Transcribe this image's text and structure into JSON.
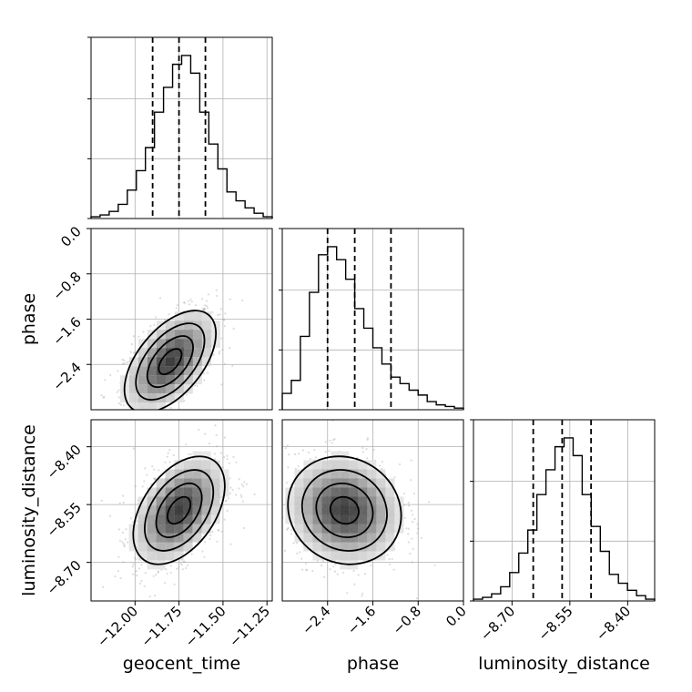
{
  "chart_data": {
    "type": "corner",
    "parameters": [
      "geocent_time",
      "phase",
      "luminosity_distance"
    ],
    "axis_labels": {
      "geocent_time": "geocent_time",
      "phase": "phase",
      "luminosity_distance": "luminosity_distance"
    },
    "ranges": {
      "geocent_time": [
        -12.25,
        -11.22
      ],
      "phase": [
        -3.2,
        0.0
      ],
      "luminosity_distance": [
        -8.8,
        -8.33
      ]
    },
    "ticks": {
      "geocent_time": [
        -12.0,
        -11.75,
        -11.5,
        -11.25
      ],
      "phase": [
        -2.4,
        -1.6,
        -0.8,
        0.0
      ],
      "luminosity_distance": [
        -8.7,
        -8.55,
        -8.4
      ]
    },
    "tick_labels": {
      "geocent_time": [
        "−12.00",
        "−11.75",
        "−11.50",
        "−11.25"
      ],
      "phase": [
        "−2.4",
        "−1.6",
        "−0.8",
        "0.0"
      ],
      "luminosity_distance": [
        "−8.70",
        "−8.55",
        "−8.40"
      ]
    },
    "quantiles": {
      "geocent_time": [
        -11.9,
        -11.75,
        -11.6
      ],
      "phase": [
        -2.4,
        -1.92,
        -1.28
      ],
      "luminosity_distance": [
        -8.645,
        -8.57,
        -8.495
      ]
    },
    "histograms": {
      "geocent_time": [
        0.01,
        0.02,
        0.04,
        0.08,
        0.16,
        0.27,
        0.4,
        0.6,
        0.74,
        0.87,
        0.92,
        0.82,
        0.6,
        0.42,
        0.28,
        0.15,
        0.1,
        0.06,
        0.03,
        0.01
      ],
      "phase": [
        0.1,
        0.18,
        0.45,
        0.72,
        0.95,
        1.0,
        0.92,
        0.8,
        0.62,
        0.5,
        0.38,
        0.28,
        0.2,
        0.16,
        0.12,
        0.09,
        0.05,
        0.03,
        0.02,
        0.01
      ],
      "luminosity_distance": [
        0.01,
        0.02,
        0.04,
        0.08,
        0.16,
        0.27,
        0.4,
        0.6,
        0.74,
        0.87,
        0.92,
        0.82,
        0.6,
        0.42,
        0.28,
        0.15,
        0.1,
        0.06,
        0.03,
        0.01
      ]
    },
    "pairs": [
      {
        "x": "geocent_time",
        "y": "phase",
        "mean": [
          -11.8,
          -2.35
        ],
        "std": [
          0.13,
          0.45
        ],
        "corr": 0.55
      },
      {
        "x": "geocent_time",
        "y": "luminosity_distance",
        "mean": [
          -11.75,
          -8.565
        ],
        "std": [
          0.13,
          0.07
        ],
        "corr": 0.45
      },
      {
        "x": "phase",
        "y": "luminosity_distance",
        "mean": [
          -2.1,
          -8.565
        ],
        "std": [
          0.5,
          0.07
        ],
        "corr": -0.1
      }
    ],
    "grid": true
  }
}
